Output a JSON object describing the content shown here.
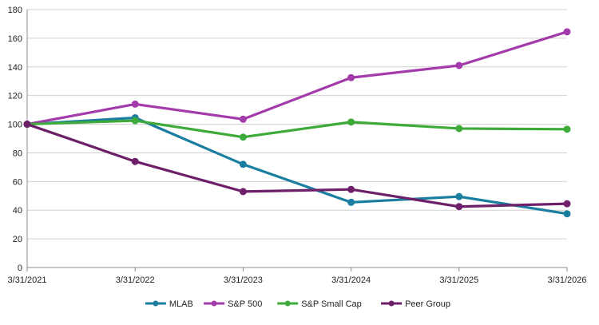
{
  "chart_data": {
    "type": "line",
    "title": "",
    "xlabel": "",
    "ylabel": "",
    "categories": [
      "3/31/2021",
      "3/31/2022",
      "3/31/2023",
      "3/31/2024",
      "3/31/2025",
      "3/31/2026"
    ],
    "ylim": [
      0,
      180
    ],
    "yticks": [
      0,
      20,
      40,
      60,
      80,
      100,
      120,
      140,
      160,
      180
    ],
    "grid": true,
    "legend_position": "bottom",
    "series": [
      {
        "name": "MLAB",
        "color": "#1a7ea0",
        "values": [
          100,
          104.5,
          72,
          45.5,
          49.5,
          37.5
        ]
      },
      {
        "name": "S&P 500",
        "color": "#a43bab",
        "values": [
          100,
          114,
          103.5,
          132.5,
          141,
          164.5
        ]
      },
      {
        "name": "S&P Small Cap",
        "color": "#3daa3a",
        "values": [
          100,
          102.5,
          91,
          101.5,
          97,
          96.5
        ]
      },
      {
        "name": "Peer Group",
        "color": "#6e1f6a",
        "values": [
          100,
          74,
          53,
          54.5,
          42.5,
          44.5
        ]
      }
    ]
  }
}
